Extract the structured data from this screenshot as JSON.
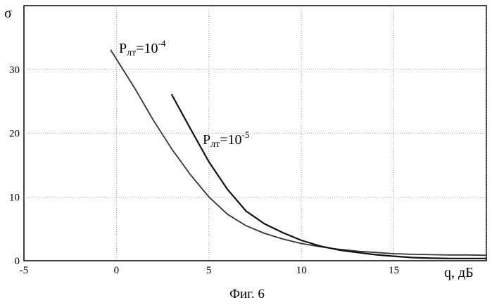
{
  "chart_data": {
    "type": "line",
    "caption": "Фиг. 6",
    "xlabel": "q, дБ",
    "ylabel": "σ",
    "xlim": [
      -5,
      20
    ],
    "ylim": [
      0,
      40
    ],
    "grid": true,
    "x_ticks": [
      -5,
      0,
      5,
      10,
      15
    ],
    "y_ticks": [
      0,
      10,
      20,
      30
    ],
    "series": [
      {
        "label_main": "P",
        "label_sub": "лт",
        "label_eq": "=10",
        "label_exp": "-4",
        "color": "#333333",
        "x": [
          -0.3,
          1,
          2,
          3,
          4,
          5,
          6,
          7,
          8,
          9,
          10,
          11,
          12,
          13,
          14,
          15,
          16,
          17,
          18,
          19,
          20
        ],
        "y": [
          33.0,
          27.0,
          22.0,
          17.5,
          13.5,
          10.0,
          7.3,
          5.5,
          4.3,
          3.4,
          2.7,
          2.2,
          1.8,
          1.5,
          1.3,
          1.1,
          1.0,
          0.95,
          0.9,
          0.9,
          0.85
        ]
      },
      {
        "label_main": "P",
        "label_sub": "лт",
        "label_eq": "=10",
        "label_exp": "-5",
        "color": "#111111",
        "x": [
          3,
          4,
          5,
          6,
          7,
          8,
          9,
          10,
          11,
          12,
          13,
          14,
          15,
          16,
          17,
          18,
          19,
          20
        ],
        "y": [
          26.0,
          20.7,
          15.5,
          11.2,
          7.8,
          5.8,
          4.4,
          3.2,
          2.3,
          1.7,
          1.3,
          0.95,
          0.7,
          0.5,
          0.4,
          0.35,
          0.35,
          0.35
        ]
      }
    ]
  }
}
